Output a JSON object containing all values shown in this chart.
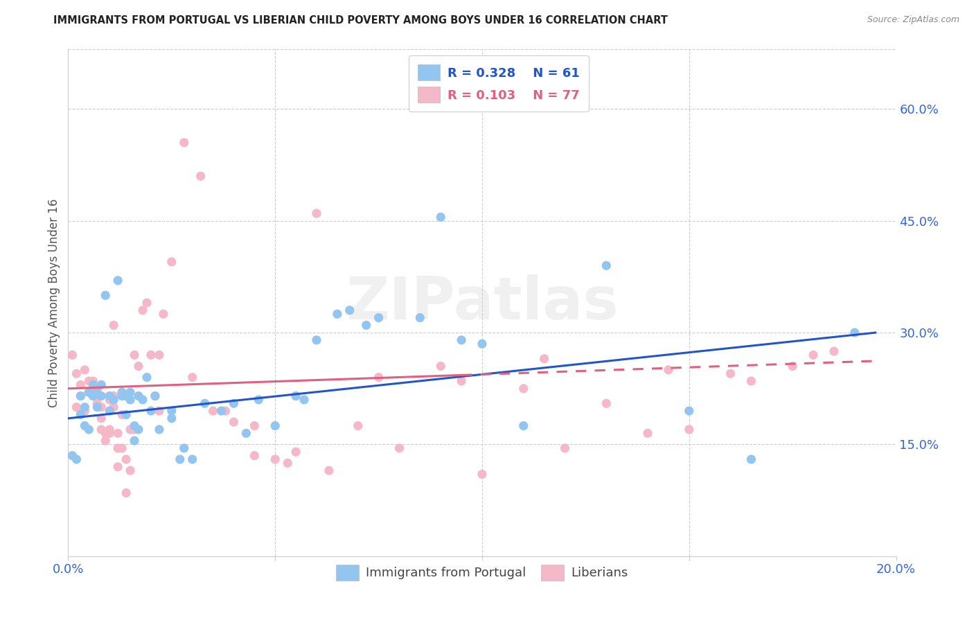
{
  "title": "IMMIGRANTS FROM PORTUGAL VS LIBERIAN CHILD POVERTY AMONG BOYS UNDER 16 CORRELATION CHART",
  "source": "Source: ZipAtlas.com",
  "ylabel": "Child Poverty Among Boys Under 16",
  "ytick_labels": [
    "15.0%",
    "30.0%",
    "45.0%",
    "60.0%"
  ],
  "ytick_values": [
    0.15,
    0.3,
    0.45,
    0.6
  ],
  "xlim": [
    0.0,
    0.2
  ],
  "ylim": [
    0.0,
    0.68
  ],
  "watermark": "ZIPatlas",
  "legend_r1": "R = 0.328",
  "legend_n1": "N = 61",
  "legend_r2": "R = 0.103",
  "legend_n2": "N = 77",
  "blue_color": "#92C5F0",
  "pink_color": "#F5B8C8",
  "blue_line_color": "#2255CC",
  "pink_line_color": "#E06080",
  "title_color": "#222222",
  "axis_label_color": "#3366DD",
  "blue_scatter": [
    [
      0.001,
      0.135
    ],
    [
      0.002,
      0.13
    ],
    [
      0.003,
      0.19
    ],
    [
      0.003,
      0.215
    ],
    [
      0.004,
      0.175
    ],
    [
      0.004,
      0.2
    ],
    [
      0.005,
      0.22
    ],
    [
      0.005,
      0.17
    ],
    [
      0.006,
      0.215
    ],
    [
      0.006,
      0.23
    ],
    [
      0.007,
      0.2
    ],
    [
      0.007,
      0.225
    ],
    [
      0.008,
      0.215
    ],
    [
      0.008,
      0.23
    ],
    [
      0.009,
      0.35
    ],
    [
      0.01,
      0.215
    ],
    [
      0.01,
      0.195
    ],
    [
      0.011,
      0.21
    ],
    [
      0.012,
      0.37
    ],
    [
      0.013,
      0.22
    ],
    [
      0.013,
      0.215
    ],
    [
      0.014,
      0.19
    ],
    [
      0.014,
      0.215
    ],
    [
      0.015,
      0.21
    ],
    [
      0.015,
      0.22
    ],
    [
      0.016,
      0.175
    ],
    [
      0.016,
      0.155
    ],
    [
      0.017,
      0.215
    ],
    [
      0.017,
      0.17
    ],
    [
      0.018,
      0.21
    ],
    [
      0.019,
      0.24
    ],
    [
      0.02,
      0.195
    ],
    [
      0.021,
      0.215
    ],
    [
      0.022,
      0.17
    ],
    [
      0.025,
      0.195
    ],
    [
      0.025,
      0.185
    ],
    [
      0.027,
      0.13
    ],
    [
      0.028,
      0.145
    ],
    [
      0.03,
      0.13
    ],
    [
      0.033,
      0.205
    ],
    [
      0.037,
      0.195
    ],
    [
      0.04,
      0.205
    ],
    [
      0.043,
      0.165
    ],
    [
      0.046,
      0.21
    ],
    [
      0.05,
      0.175
    ],
    [
      0.055,
      0.215
    ],
    [
      0.057,
      0.21
    ],
    [
      0.06,
      0.29
    ],
    [
      0.065,
      0.325
    ],
    [
      0.068,
      0.33
    ],
    [
      0.072,
      0.31
    ],
    [
      0.075,
      0.32
    ],
    [
      0.085,
      0.32
    ],
    [
      0.09,
      0.455
    ],
    [
      0.095,
      0.29
    ],
    [
      0.1,
      0.285
    ],
    [
      0.11,
      0.175
    ],
    [
      0.13,
      0.39
    ],
    [
      0.15,
      0.195
    ],
    [
      0.165,
      0.13
    ],
    [
      0.19,
      0.3
    ]
  ],
  "pink_scatter": [
    [
      0.001,
      0.27
    ],
    [
      0.002,
      0.2
    ],
    [
      0.002,
      0.245
    ],
    [
      0.003,
      0.23
    ],
    [
      0.003,
      0.215
    ],
    [
      0.004,
      0.195
    ],
    [
      0.004,
      0.25
    ],
    [
      0.005,
      0.22
    ],
    [
      0.005,
      0.235
    ],
    [
      0.006,
      0.22
    ],
    [
      0.006,
      0.235
    ],
    [
      0.007,
      0.22
    ],
    [
      0.007,
      0.205
    ],
    [
      0.007,
      0.215
    ],
    [
      0.008,
      0.17
    ],
    [
      0.008,
      0.2
    ],
    [
      0.008,
      0.185
    ],
    [
      0.009,
      0.155
    ],
    [
      0.009,
      0.165
    ],
    [
      0.01,
      0.21
    ],
    [
      0.01,
      0.17
    ],
    [
      0.01,
      0.165
    ],
    [
      0.011,
      0.31
    ],
    [
      0.011,
      0.2
    ],
    [
      0.011,
      0.215
    ],
    [
      0.012,
      0.165
    ],
    [
      0.012,
      0.145
    ],
    [
      0.012,
      0.12
    ],
    [
      0.013,
      0.145
    ],
    [
      0.013,
      0.19
    ],
    [
      0.014,
      0.13
    ],
    [
      0.014,
      0.085
    ],
    [
      0.015,
      0.17
    ],
    [
      0.015,
      0.115
    ],
    [
      0.016,
      0.27
    ],
    [
      0.016,
      0.17
    ],
    [
      0.017,
      0.255
    ],
    [
      0.018,
      0.33
    ],
    [
      0.019,
      0.34
    ],
    [
      0.02,
      0.27
    ],
    [
      0.021,
      0.215
    ],
    [
      0.022,
      0.195
    ],
    [
      0.022,
      0.27
    ],
    [
      0.023,
      0.325
    ],
    [
      0.025,
      0.395
    ],
    [
      0.028,
      0.555
    ],
    [
      0.03,
      0.24
    ],
    [
      0.032,
      0.51
    ],
    [
      0.035,
      0.195
    ],
    [
      0.038,
      0.195
    ],
    [
      0.04,
      0.18
    ],
    [
      0.045,
      0.175
    ],
    [
      0.045,
      0.135
    ],
    [
      0.05,
      0.13
    ],
    [
      0.053,
      0.125
    ],
    [
      0.055,
      0.215
    ],
    [
      0.055,
      0.14
    ],
    [
      0.06,
      0.46
    ],
    [
      0.063,
      0.115
    ],
    [
      0.07,
      0.175
    ],
    [
      0.075,
      0.24
    ],
    [
      0.08,
      0.145
    ],
    [
      0.09,
      0.255
    ],
    [
      0.095,
      0.235
    ],
    [
      0.1,
      0.11
    ],
    [
      0.11,
      0.225
    ],
    [
      0.115,
      0.265
    ],
    [
      0.12,
      0.145
    ],
    [
      0.13,
      0.205
    ],
    [
      0.14,
      0.165
    ],
    [
      0.145,
      0.25
    ],
    [
      0.15,
      0.17
    ],
    [
      0.16,
      0.245
    ],
    [
      0.165,
      0.235
    ],
    [
      0.175,
      0.255
    ],
    [
      0.18,
      0.27
    ],
    [
      0.185,
      0.275
    ]
  ],
  "blue_trendline": [
    [
      0.0,
      0.185
    ],
    [
      0.195,
      0.3
    ]
  ],
  "pink_trendline_solid": [
    [
      0.0,
      0.225
    ],
    [
      0.095,
      0.243
    ]
  ],
  "pink_trendline_dashed": [
    [
      0.095,
      0.243
    ],
    [
      0.195,
      0.262
    ]
  ],
  "grid_color": "#CCCCCC",
  "xtick_positions": [
    0.0,
    0.05,
    0.1,
    0.15,
    0.2
  ],
  "bottom_legend_labels": [
    "Immigrants from Portugal",
    "Liberians"
  ]
}
